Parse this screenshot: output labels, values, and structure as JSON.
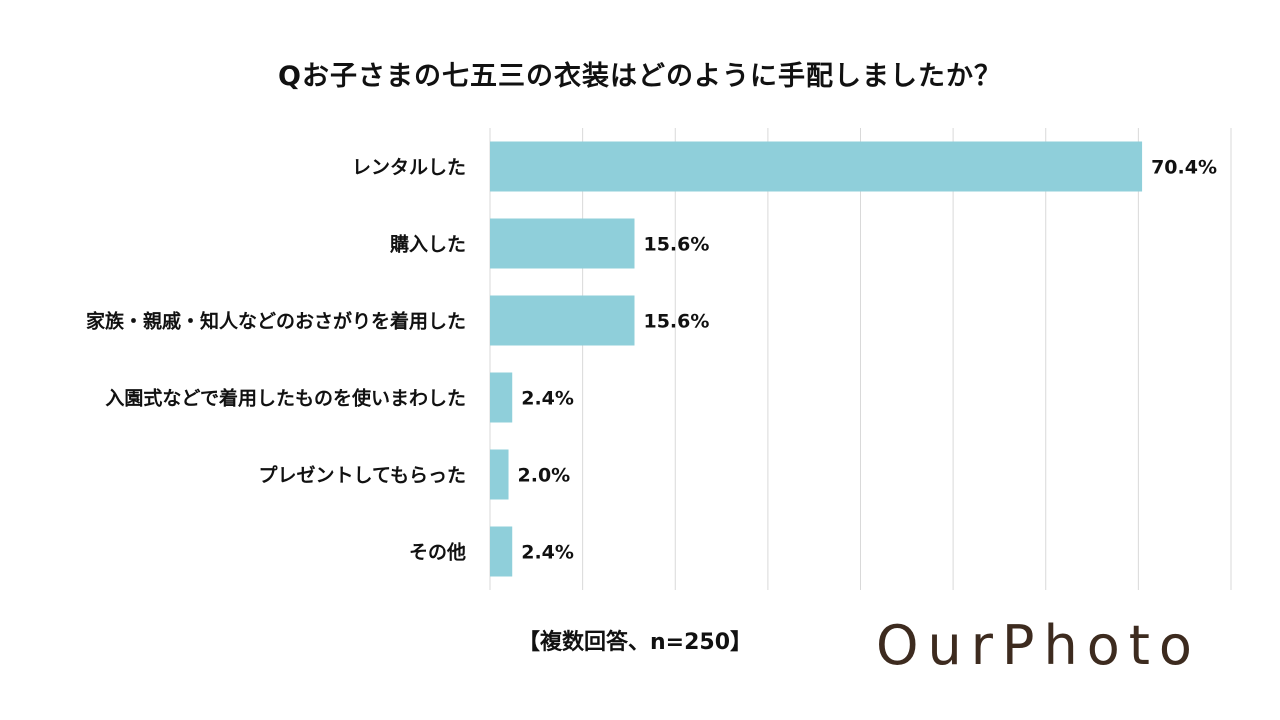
{
  "title": "Qお子さまの七五三の衣装はどのように手配しましたか？",
  "footnote": "【複数回答、n=250】",
  "brand": "OurPhoto",
  "colors": {
    "bar": "#8fcfda",
    "grid": "#d9d9d9",
    "logo": "#3d2b1f"
  },
  "chart_data": {
    "type": "bar",
    "orientation": "horizontal",
    "title": "Qお子さまの七五三の衣装はどのように手配しましたか？",
    "categories": [
      "レンタルした",
      "購入した",
      "家族・親戚・知人などのおさがりを着用した",
      "入園式などで着用したものを使いまわした",
      "プレゼントしてもらった",
      "その他"
    ],
    "values": [
      70.4,
      15.6,
      15.6,
      2.4,
      2.0,
      2.4
    ],
    "value_labels": [
      "70.4%",
      "15.6%",
      "15.6%",
      "2.4%",
      "2.0%",
      "2.4%"
    ],
    "xlim": [
      0,
      80
    ],
    "grid": true,
    "legend": "none"
  }
}
